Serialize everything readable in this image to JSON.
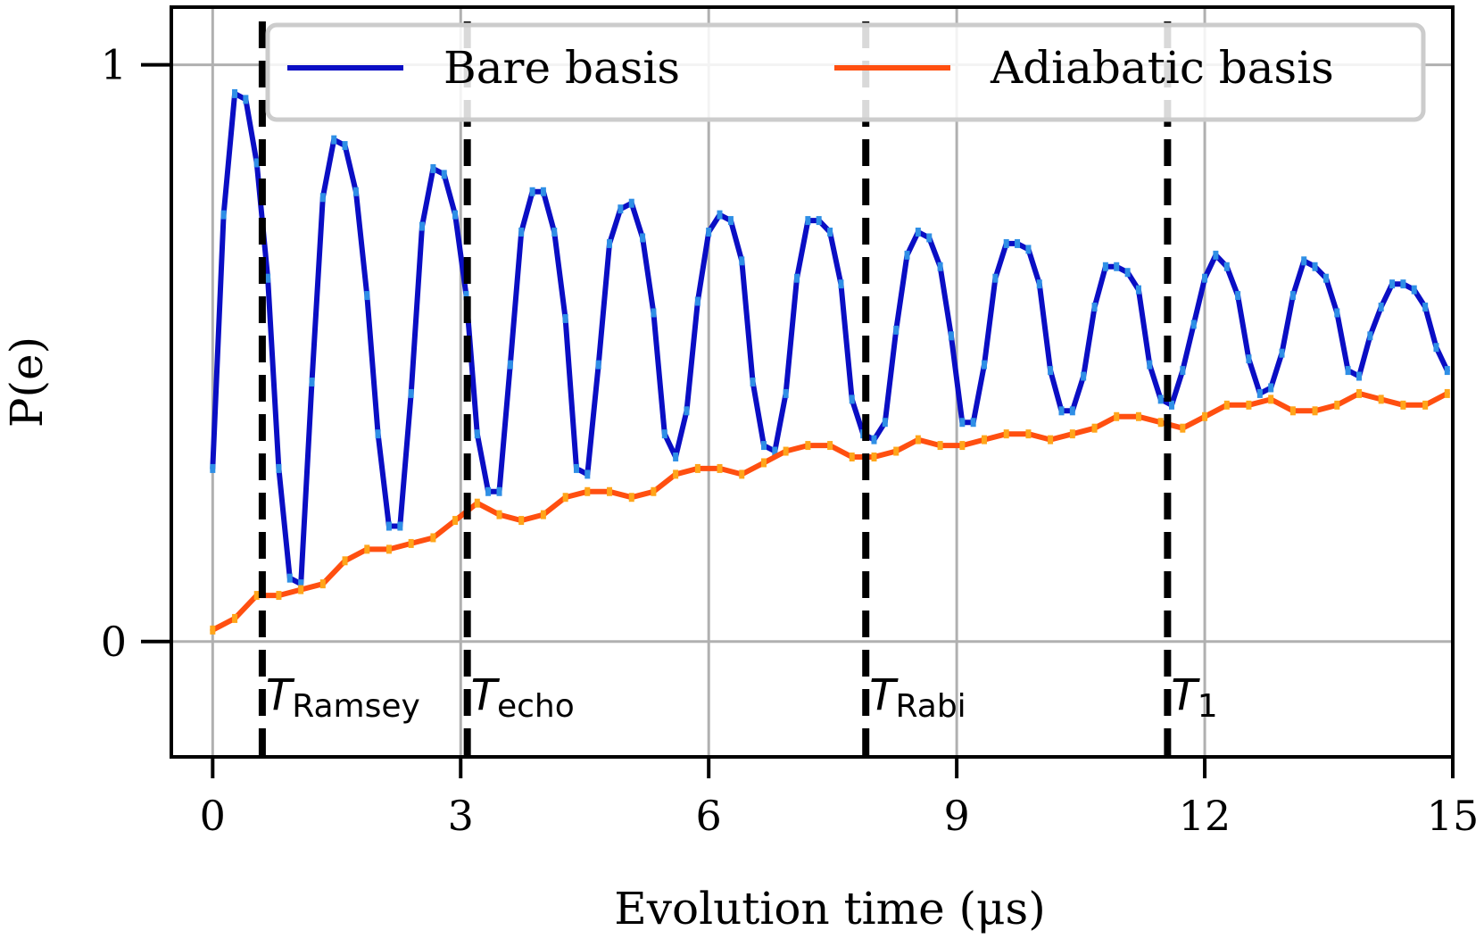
{
  "chart_data": {
    "type": "line",
    "title": "",
    "xlabel": "Evolution time (μs)",
    "ylabel": "P(e)",
    "xlim": [
      -0.5,
      15
    ],
    "ylim": [
      -0.2,
      1.1
    ],
    "xticks": [
      0,
      3,
      6,
      9,
      12,
      15
    ],
    "xtick_labels": [
      "0",
      "3",
      "6",
      "9",
      "12",
      "15"
    ],
    "yticks": [
      0,
      1
    ],
    "ytick_labels": [
      "0",
      "1"
    ],
    "grid": true,
    "legend_position": "top",
    "series": [
      {
        "name": "Bare basis",
        "color": "#0a0ec4",
        "marker_color": "#2f8fe6",
        "x": [
          0,
          0.133,
          0.267,
          0.4,
          0.533,
          0.667,
          0.8,
          0.933,
          1.067,
          1.2,
          1.333,
          1.467,
          1.6,
          1.733,
          1.867,
          2.0,
          2.133,
          2.267,
          2.4,
          2.533,
          2.667,
          2.8,
          2.933,
          3.067,
          3.2,
          3.333,
          3.467,
          3.6,
          3.733,
          3.867,
          4.0,
          4.133,
          4.267,
          4.4,
          4.533,
          4.667,
          4.8,
          4.933,
          5.067,
          5.2,
          5.333,
          5.467,
          5.6,
          5.733,
          5.867,
          6.0,
          6.133,
          6.267,
          6.4,
          6.533,
          6.667,
          6.8,
          6.933,
          7.067,
          7.2,
          7.333,
          7.467,
          7.6,
          7.733,
          7.867,
          8.0,
          8.133,
          8.267,
          8.4,
          8.533,
          8.667,
          8.8,
          8.933,
          9.067,
          9.2,
          9.333,
          9.467,
          9.6,
          9.733,
          9.867,
          10.0,
          10.133,
          10.267,
          10.4,
          10.533,
          10.667,
          10.8,
          10.933,
          11.067,
          11.2,
          11.333,
          11.467,
          11.6,
          11.733,
          11.867,
          12.0,
          12.133,
          12.267,
          12.4,
          12.533,
          12.667,
          12.8,
          12.933,
          13.067,
          13.2,
          13.333,
          13.467,
          13.6,
          13.733,
          13.867,
          14.0,
          14.133,
          14.267,
          14.4,
          14.533,
          14.667,
          14.8,
          14.933
        ],
        "values": [
          0.3,
          0.74,
          0.95,
          0.94,
          0.83,
          0.63,
          0.3,
          0.11,
          0.1,
          0.45,
          0.77,
          0.87,
          0.86,
          0.78,
          0.6,
          0.36,
          0.2,
          0.2,
          0.43,
          0.72,
          0.82,
          0.81,
          0.74,
          0.6,
          0.36,
          0.26,
          0.26,
          0.48,
          0.71,
          0.78,
          0.78,
          0.71,
          0.56,
          0.3,
          0.29,
          0.48,
          0.69,
          0.75,
          0.76,
          0.7,
          0.57,
          0.36,
          0.32,
          0.4,
          0.59,
          0.71,
          0.74,
          0.73,
          0.66,
          0.45,
          0.34,
          0.33,
          0.43,
          0.63,
          0.73,
          0.73,
          0.71,
          0.62,
          0.42,
          0.36,
          0.35,
          0.38,
          0.54,
          0.67,
          0.71,
          0.7,
          0.65,
          0.53,
          0.38,
          0.38,
          0.48,
          0.63,
          0.69,
          0.69,
          0.68,
          0.62,
          0.47,
          0.4,
          0.4,
          0.46,
          0.58,
          0.65,
          0.65,
          0.64,
          0.61,
          0.48,
          0.42,
          0.41,
          0.47,
          0.55,
          0.63,
          0.67,
          0.65,
          0.6,
          0.49,
          0.43,
          0.44,
          0.5,
          0.6,
          0.66,
          0.65,
          0.63,
          0.57,
          0.47,
          0.46,
          0.53,
          0.58,
          0.62,
          0.62,
          0.61,
          0.58,
          0.51,
          0.47
        ]
      },
      {
        "name": "Adiabatic basis",
        "color": "#ff4f10",
        "marker_color": "#ffa51a",
        "x": [
          0,
          0.267,
          0.533,
          0.8,
          1.067,
          1.333,
          1.6,
          1.867,
          2.133,
          2.4,
          2.667,
          2.933,
          3.2,
          3.467,
          3.733,
          4.0,
          4.267,
          4.533,
          4.8,
          5.067,
          5.333,
          5.6,
          5.867,
          6.133,
          6.4,
          6.667,
          6.933,
          7.2,
          7.467,
          7.733,
          8.0,
          8.267,
          8.533,
          8.8,
          9.067,
          9.333,
          9.6,
          9.867,
          10.133,
          10.4,
          10.667,
          10.933,
          11.2,
          11.467,
          11.733,
          12.0,
          12.267,
          12.533,
          12.8,
          13.067,
          13.333,
          13.6,
          13.867,
          14.133,
          14.4,
          14.667,
          14.933
        ],
        "values": [
          0.02,
          0.04,
          0.08,
          0.08,
          0.09,
          0.1,
          0.14,
          0.16,
          0.16,
          0.17,
          0.18,
          0.21,
          0.24,
          0.22,
          0.21,
          0.22,
          0.25,
          0.26,
          0.26,
          0.25,
          0.26,
          0.29,
          0.3,
          0.3,
          0.29,
          0.31,
          0.33,
          0.34,
          0.34,
          0.32,
          0.32,
          0.33,
          0.35,
          0.34,
          0.34,
          0.35,
          0.36,
          0.36,
          0.35,
          0.36,
          0.37,
          0.39,
          0.39,
          0.38,
          0.37,
          0.39,
          0.41,
          0.41,
          0.42,
          0.4,
          0.4,
          0.41,
          0.43,
          0.42,
          0.41,
          0.41,
          0.43
        ]
      }
    ],
    "vertical_lines": [
      {
        "x": 0.6,
        "label_main": "T",
        "label_sub": "Ramsey"
      },
      {
        "x": 3.08,
        "label_main": "T",
        "label_sub": "echo"
      },
      {
        "x": 7.9,
        "label_main": "T",
        "label_sub": "Rabi"
      },
      {
        "x": 11.55,
        "label_main": "T",
        "label_sub": "1"
      }
    ]
  }
}
